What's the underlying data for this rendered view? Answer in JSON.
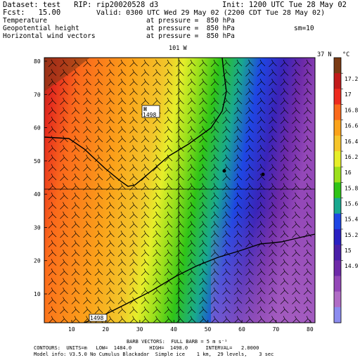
{
  "header": {
    "dataset": "Dataset: test   RIP: rip20020528 d3",
    "init": "Init: 1200 UTC Tue 28 May 02",
    "fcst": "Fcst:   15.00",
    "valid": "Valid: 0300 UTC Wed 29 May 02 (2200 CDT Tue 28 May 02)",
    "fields": [
      {
        "name": "Temperature",
        "pressure": "at pressure =  850 hPa"
      },
      {
        "name": "Geopotential height",
        "pressure": "at pressure =  850 hPa"
      },
      {
        "name": "Horizontal wind vectors",
        "pressure": "at pressure =  850 hPa"
      }
    ],
    "smoothing": "sm=10"
  },
  "map": {
    "lon_label": "101 W",
    "lat_label": "37 N",
    "x_ticks": [
      "10",
      "20",
      "30",
      "40",
      "50",
      "60",
      "70",
      "80"
    ],
    "y_ticks": [
      "10",
      "20",
      "30",
      "40",
      "50",
      "60",
      "70",
      "80"
    ],
    "contour_labels": [
      "1498",
      "1498"
    ],
    "high_marker": "H"
  },
  "colorbar": {
    "unit": "°C",
    "labels": [
      "17.2",
      "17",
      "16.8",
      "16.6",
      "16.4",
      "16.2",
      "16",
      "15.8",
      "15.6",
      "15.4",
      "15.2",
      "15",
      "14.9"
    ],
    "colors": [
      "#7a3b14",
      "#c21a1a",
      "#ee2b1e",
      "#fb6a1b",
      "#fba21a",
      "#f6c52b",
      "#e6ee2a",
      "#9ce01c",
      "#2fc417",
      "#19a88f",
      "#1e46e4",
      "#2a20c2",
      "#4a1fa8",
      "#6e2aa8",
      "#9448b8",
      "#b06cc6",
      "#8c8cef"
    ]
  },
  "footer": {
    "barb": "BARB VECTORS:  FULL BARB = 5 m s⁻¹",
    "contours": "CONTOURS:  UNITS=m   LOW=  1484.0      HIGH=  1498.0      INTERVAL=   2.0000",
    "model": "Model info: V3.5.0 No Cumulus Blackadar  Simple ice    1 km,  29 levels,    3 sec"
  }
}
